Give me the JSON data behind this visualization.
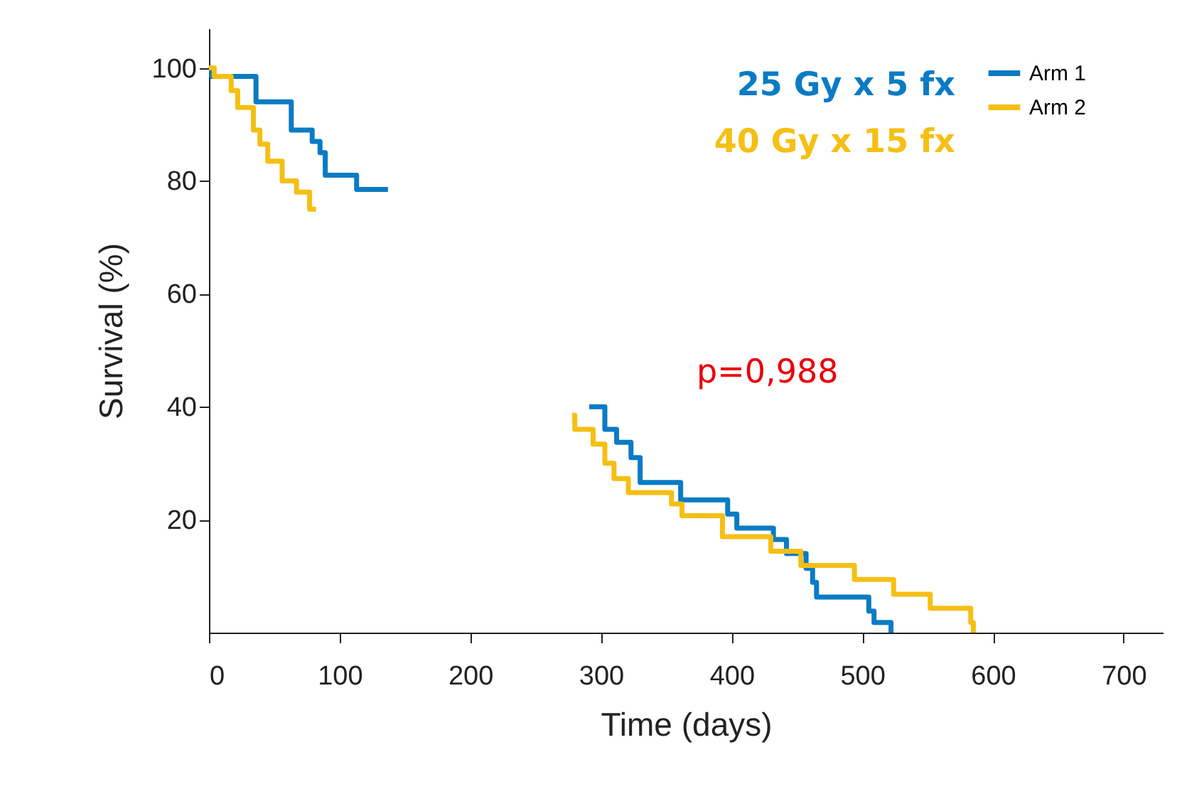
{
  "chart_data": {
    "type": "step",
    "xlabel": "Time (days)",
    "ylabel": "Survival (%)",
    "xlim": [
      0,
      730
    ],
    "xticks": [
      0,
      100,
      200,
      300,
      400,
      500,
      600,
      700
    ],
    "ylim": [
      0,
      107
    ],
    "yticks": [
      20,
      40,
      60,
      80,
      100
    ],
    "grid": false,
    "legend": "top right",
    "line_style": "solid",
    "marker": "none",
    "series": [
      {
        "name": "Arm 1",
        "color": "#0a7bc4",
        "x": [
          0,
          2,
          36,
          63,
          79,
          85,
          89,
          113,
          137,
          140,
          285,
          291,
          303,
          312,
          323,
          330,
          361,
          397,
          404,
          432,
          442,
          457,
          462,
          465,
          505,
          509,
          522
        ],
        "values": [
          100,
          98.5,
          94,
          89,
          87,
          85,
          81,
          78.5,
          78.5,
          null,
          null,
          40,
          36,
          33.7,
          31,
          26.6,
          23.5,
          21,
          18.5,
          16.5,
          14,
          11.4,
          8.9,
          6.3,
          3.8,
          1.8,
          0
        ]
      },
      {
        "name": "Arm 2",
        "color": "#f5bf14",
        "x": [
          0,
          4,
          17,
          22,
          34,
          39,
          45,
          56,
          67,
          77,
          82,
          85,
          275,
          278,
          280,
          294,
          303,
          310,
          321,
          354,
          362,
          393,
          430,
          453,
          494,
          524,
          552,
          583,
          585
        ],
        "values": [
          100,
          98.5,
          96,
          93,
          89,
          86.5,
          83.5,
          80,
          78,
          75,
          75,
          null,
          null,
          38.5,
          36,
          33.4,
          30,
          27.3,
          24.8,
          22.8,
          20.7,
          17,
          14.4,
          11.9,
          9.4,
          6.8,
          4.3,
          1.8,
          0
        ]
      }
    ],
    "annotations": [
      "25 Gy x 5 fx",
      "40 Gy x 15 fx",
      "p=0,988"
    ]
  }
}
